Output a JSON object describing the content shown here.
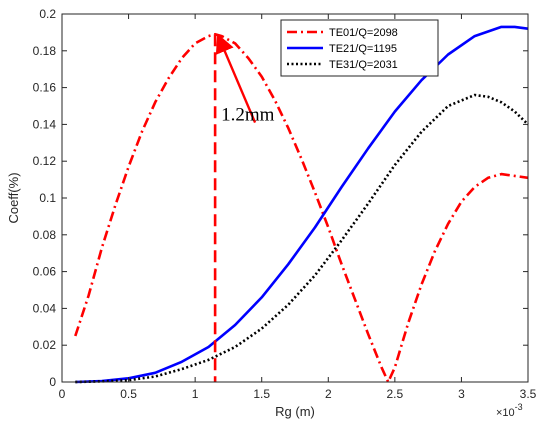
{
  "chart_data": {
    "type": "line",
    "xlabel": "Rg (m)",
    "ylabel": "Coeff(%)",
    "x_multiplier_label": "×10",
    "x_multiplier_exponent": "-3",
    "xlim": [
      0,
      3.5
    ],
    "ylim": [
      0,
      0.2
    ],
    "xticks": [
      0,
      0.5,
      1,
      1.5,
      2,
      2.5,
      3,
      3.5
    ],
    "xtick_labels": [
      "0",
      "0.5",
      "1",
      "1.5",
      "2",
      "2.5",
      "3",
      "3.5"
    ],
    "yticks": [
      0,
      0.02,
      0.04,
      0.06,
      0.08,
      0.1,
      0.12,
      0.14,
      0.16,
      0.18,
      0.2
    ],
    "ytick_labels": [
      "0",
      "0.02",
      "0.04",
      "0.06",
      "0.08",
      "0.1",
      "0.12",
      "0.14",
      "0.16",
      "0.18",
      "0.2"
    ],
    "grid": false,
    "legend_position": "top-right",
    "series": [
      {
        "name": "TE01/Q=2098",
        "color": "#ff0000",
        "style": "dashdot",
        "x": [
          0.1,
          0.2,
          0.3,
          0.4,
          0.5,
          0.6,
          0.7,
          0.8,
          0.9,
          1.0,
          1.1,
          1.15,
          1.2,
          1.3,
          1.4,
          1.5,
          1.6,
          1.7,
          1.8,
          1.9,
          2.0,
          2.1,
          2.2,
          2.3,
          2.4,
          2.45,
          2.5,
          2.6,
          2.7,
          2.8,
          2.9,
          3.0,
          3.1,
          3.2,
          3.3,
          3.4,
          3.5
        ],
        "y": [
          0.025,
          0.047,
          0.073,
          0.096,
          0.117,
          0.136,
          0.152,
          0.165,
          0.176,
          0.184,
          0.188,
          0.189,
          0.188,
          0.184,
          0.176,
          0.166,
          0.153,
          0.138,
          0.121,
          0.103,
          0.084,
          0.064,
          0.045,
          0.026,
          0.008,
          0.0,
          0.008,
          0.032,
          0.053,
          0.071,
          0.086,
          0.098,
          0.106,
          0.111,
          0.113,
          0.112,
          0.111
        ]
      },
      {
        "name": "TE21/Q=1195",
        "color": "#0000ff",
        "style": "solid",
        "x": [
          0.1,
          0.3,
          0.5,
          0.7,
          0.9,
          1.1,
          1.3,
          1.5,
          1.7,
          1.9,
          2.1,
          2.3,
          2.5,
          2.7,
          2.9,
          3.1,
          3.3,
          3.4,
          3.5
        ],
        "y": [
          0.0,
          0.0005,
          0.002,
          0.005,
          0.011,
          0.019,
          0.031,
          0.046,
          0.064,
          0.084,
          0.106,
          0.127,
          0.147,
          0.164,
          0.178,
          0.188,
          0.193,
          0.193,
          0.192
        ]
      },
      {
        "name": "TE31/Q=2031",
        "color": "#000000",
        "style": "dotted",
        "x": [
          0.1,
          0.3,
          0.5,
          0.7,
          0.9,
          1.1,
          1.3,
          1.5,
          1.7,
          1.9,
          2.1,
          2.3,
          2.5,
          2.7,
          2.9,
          3.1,
          3.2,
          3.3,
          3.4,
          3.5
        ],
        "y": [
          0.0,
          0.0003,
          0.001,
          0.003,
          0.007,
          0.012,
          0.019,
          0.029,
          0.042,
          0.058,
          0.077,
          0.097,
          0.118,
          0.136,
          0.15,
          0.156,
          0.155,
          0.152,
          0.147,
          0.14
        ]
      }
    ],
    "annotations": [
      {
        "text": "1.2mm",
        "marker_x": 1.15,
        "arrow_from": [
          1.45,
          0.141
        ],
        "arrow_to": [
          1.18,
          0.187
        ],
        "arrow_color": "#ff0000",
        "vline_x": 1.15,
        "vline_color": "#ff0000"
      }
    ]
  }
}
